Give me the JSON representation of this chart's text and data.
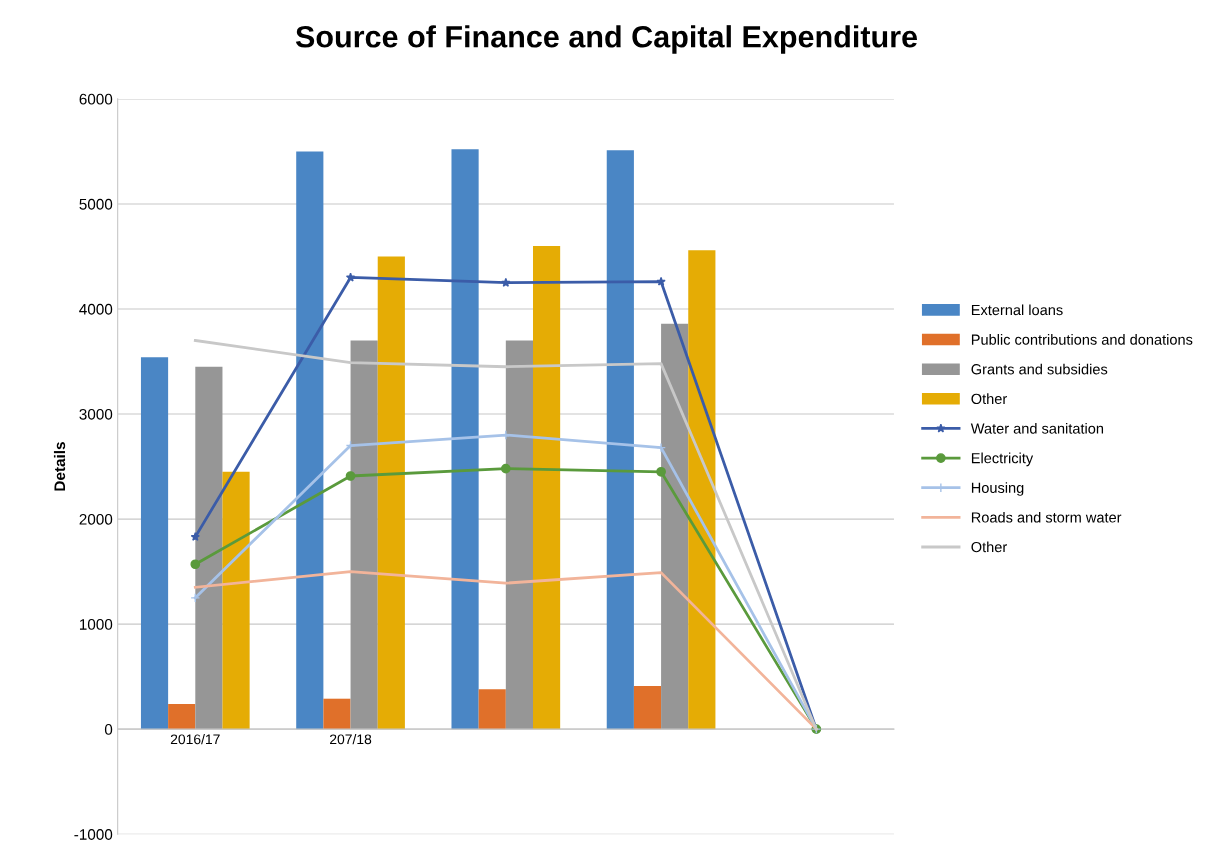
{
  "chart_data": {
    "type": "bar",
    "title": "Source of Finance and Capital Expenditure",
    "ylabel": "Details",
    "categories": [
      "2016/17",
      "207/18",
      null,
      null,
      null
    ],
    "series": [
      {
        "name": "External loans",
        "color": "#4a86c5",
        "values": [
          3540,
          5500,
          5520,
          5510,
          null
        ]
      },
      {
        "name": "Public contributions and donations",
        "color": "#e0702a",
        "values": [
          240,
          290,
          380,
          410,
          null
        ]
      },
      {
        "name": "Grants and subsidies",
        "color": "#969696",
        "values": [
          3450,
          3700,
          3700,
          3860,
          null
        ]
      },
      {
        "name": "Other",
        "color": "#e5ac05",
        "values": [
          2450,
          4500,
          4600,
          4560,
          null
        ]
      },
      {
        "name": "Water and sanitation",
        "type": "line",
        "marker": "star",
        "color": "#3b5ca8",
        "values": [
          1830,
          4300,
          4250,
          4260,
          0
        ]
      },
      {
        "name": "Electricity",
        "type": "line",
        "marker": "circle",
        "color": "#5a9a3c",
        "values": [
          1570,
          2410,
          2480,
          2450,
          0
        ]
      },
      {
        "name": "Housing",
        "type": "line",
        "marker": "cross",
        "color": "#a6c2e8",
        "values": [
          1250,
          2700,
          2800,
          2680,
          0
        ]
      },
      {
        "name": "Roads and storm water",
        "type": "line",
        "marker": "none",
        "color": "#f2b49a",
        "values": [
          1350,
          1500,
          1390,
          1490,
          0
        ]
      },
      {
        "name": "Other",
        "type": "line",
        "marker": "none",
        "color": "#c8c8c8",
        "values": [
          3700,
          3490,
          3450,
          3480,
          0
        ]
      }
    ],
    "ylim": [
      -1000,
      6000
    ],
    "yticks": [
      -1000,
      0,
      1000,
      2000,
      3000,
      4000,
      5000,
      6000
    ],
    "grid": "y",
    "legend": "right"
  }
}
